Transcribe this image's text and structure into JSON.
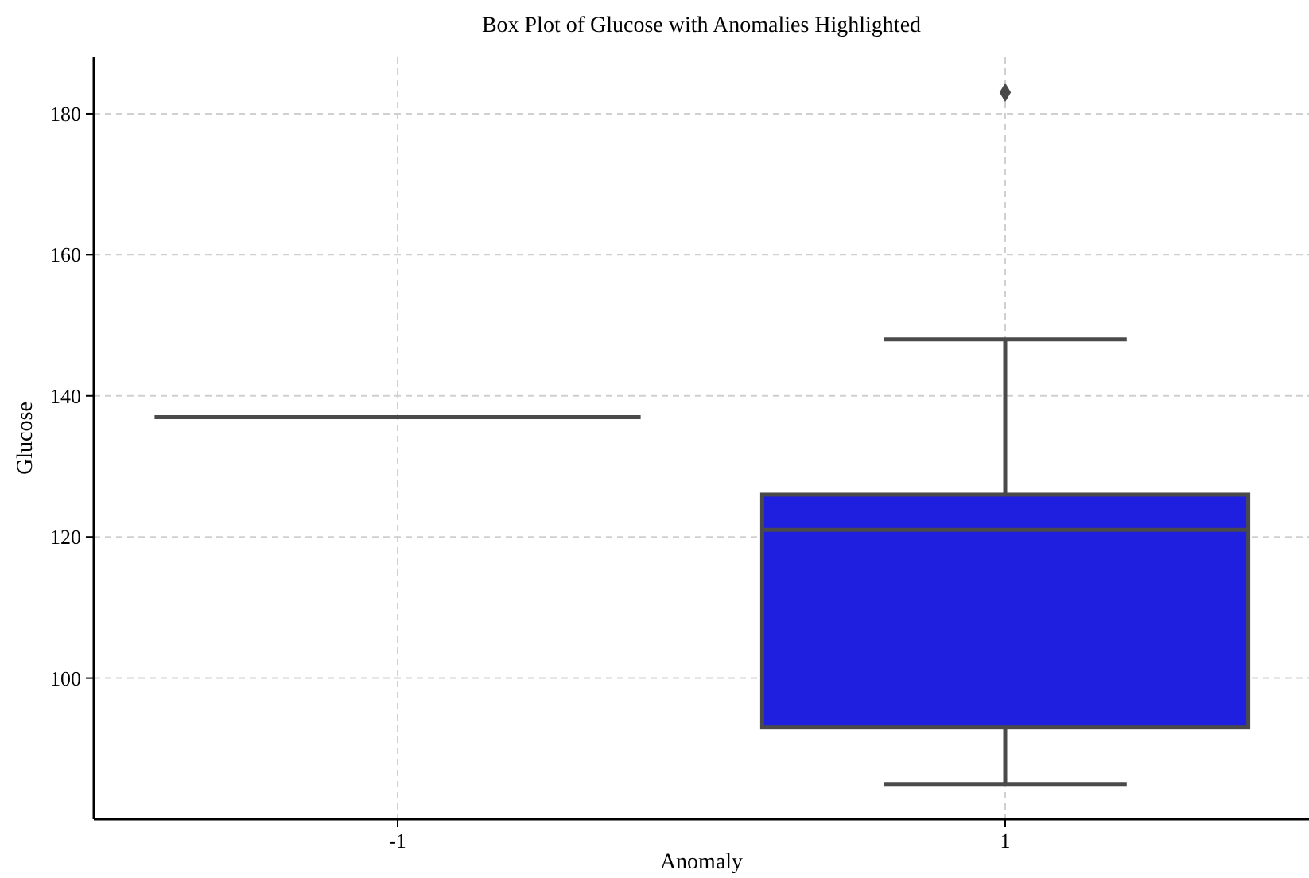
{
  "chart_data": {
    "type": "box",
    "title": "Box Plot of Glucose with Anomalies Highlighted",
    "xlabel": "Anomaly",
    "ylabel": "Glucose",
    "categories": [
      "-1",
      "1"
    ],
    "boxes": [
      {
        "low": 137,
        "q1": 137,
        "median": 137,
        "q3": 137,
        "high": 137
      },
      {
        "low": 85,
        "q1": 93,
        "median": 121,
        "q3": 126,
        "high": 148,
        "outliers": [
          183
        ]
      }
    ],
    "colors": [
      "#4a4a4a",
      "#1f1fe0"
    ],
    "ylim": [
      80,
      188
    ],
    "yticks": [
      100,
      120,
      140,
      160,
      180
    ],
    "grid": true,
    "marker": "diamond"
  }
}
